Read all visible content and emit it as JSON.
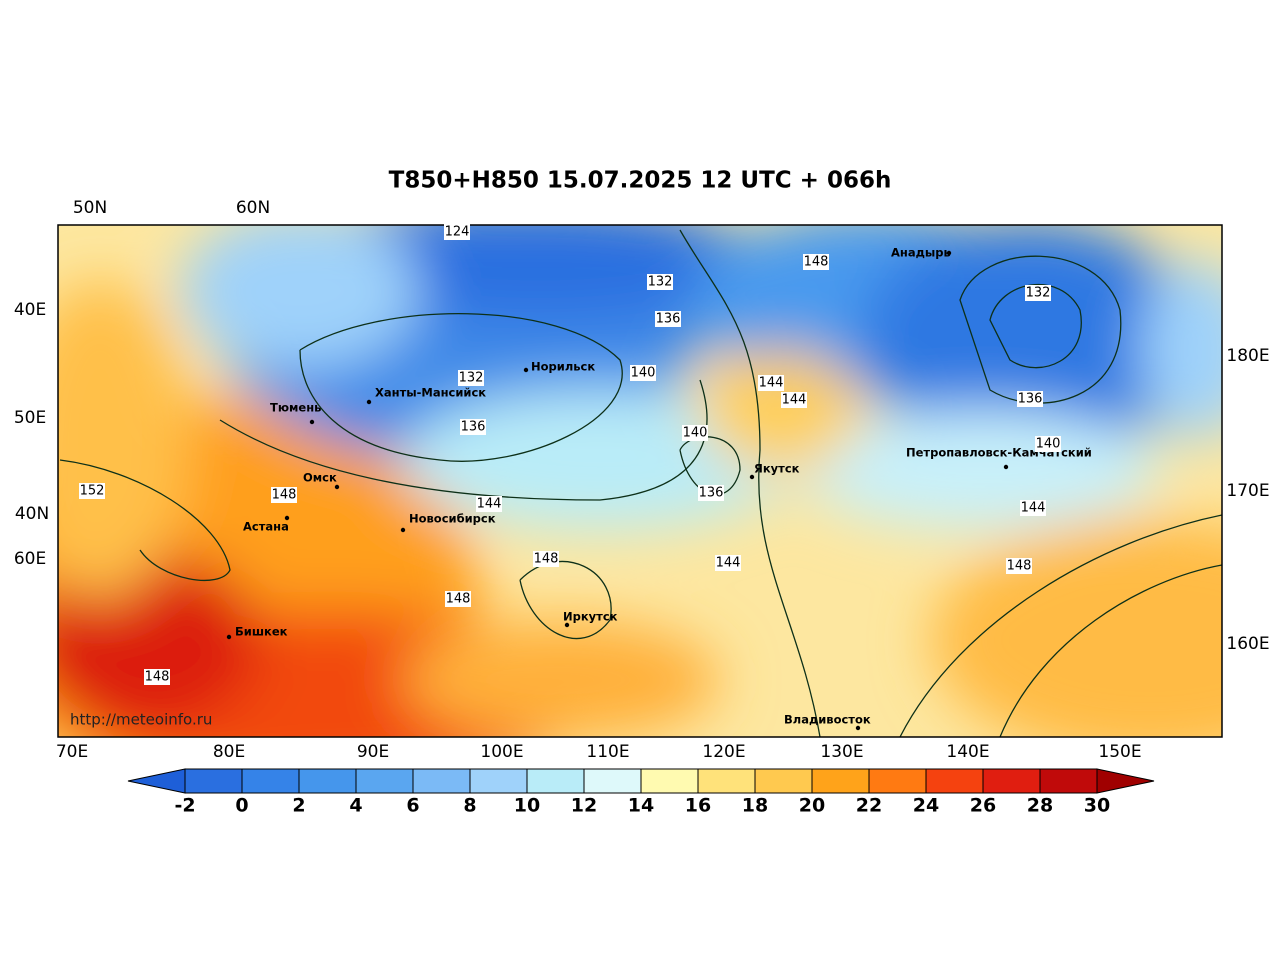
{
  "title": "T850+H850 15.07.2025 12 UTC + 066h",
  "top_labels": [
    "50N",
    "60N"
  ],
  "left_labels": [
    "40E",
    "50E",
    "40N",
    "60E"
  ],
  "right_labels": [
    "180E",
    "170E",
    "160E"
  ],
  "bottom_labels": [
    "70E",
    "80E",
    "90E",
    "100E",
    "110E",
    "120E",
    "130E",
    "140E",
    "150E"
  ],
  "cities": [
    "Анадырь",
    "Норильск",
    "Ханты-Мансийск",
    "Тюмень",
    "Омск",
    "Якутск",
    "Петропавловск-Камчатский",
    "Астана",
    "Новосибирск",
    "Иркутск",
    "Бишкек",
    "Владивосток"
  ],
  "contour_labels": [
    124,
    132,
    148,
    132,
    136,
    140,
    132,
    144,
    144,
    136,
    140,
    136,
    140,
    152,
    148,
    144,
    136,
    144,
    148,
    144,
    148,
    148,
    148
  ],
  "watermark": "http://meteoinfo.ru",
  "colorbar": {
    "ticks": [
      -2,
      0,
      2,
      4,
      6,
      8,
      10,
      12,
      14,
      16,
      18,
      20,
      22,
      24,
      26,
      28,
      30
    ],
    "colors": [
      "#1e5fd8",
      "#2a6fe0",
      "#3583e8",
      "#4596ec",
      "#5aa6f0",
      "#7bbaf6",
      "#9fd2fa",
      "#b9ecf8",
      "#def9fa",
      "#fffab0",
      "#ffe27a",
      "#ffc94f",
      "#ffa31a",
      "#ff7a12",
      "#f5420f",
      "#e01e10",
      "#c00a0a",
      "#a00000"
    ]
  }
}
